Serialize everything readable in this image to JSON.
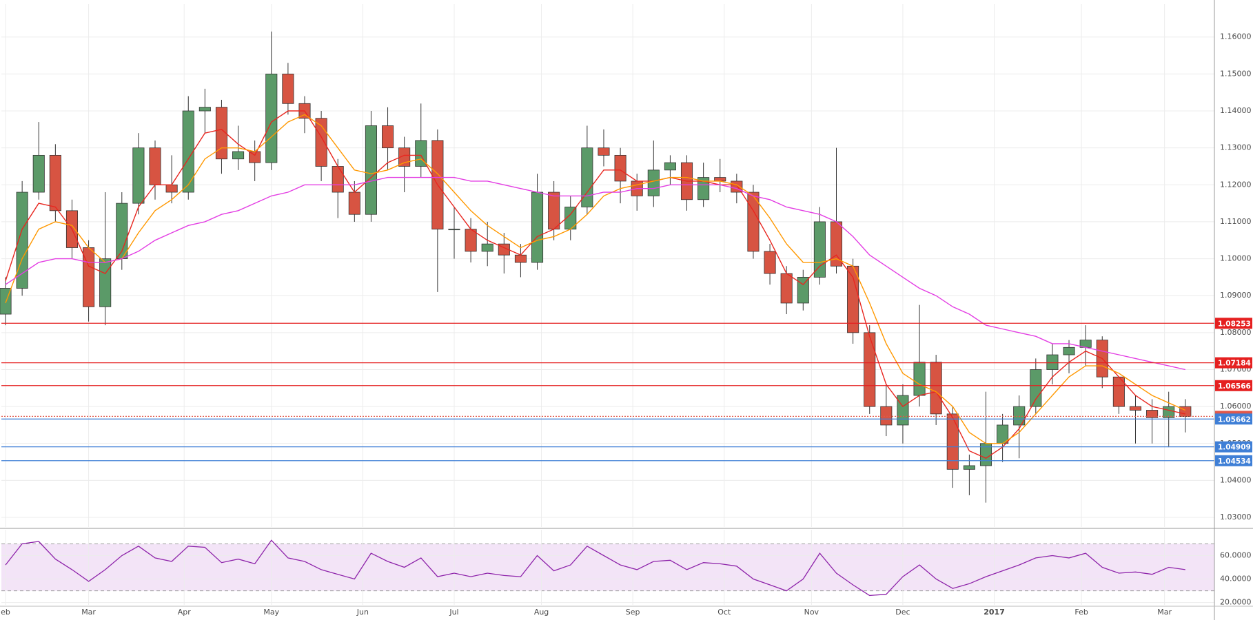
{
  "chart_data": [
    {
      "type": "candlestick",
      "x": [
        1,
        5,
        9,
        13,
        17,
        21,
        25,
        29,
        33,
        37,
        41,
        45,
        49,
        53,
        57,
        61,
        65,
        69,
        73,
        77,
        81,
        85,
        89,
        93,
        97,
        101,
        105,
        109,
        113,
        117,
        121,
        125,
        129,
        133,
        137,
        141,
        145,
        149,
        153,
        157,
        161,
        165,
        169,
        173,
        177,
        181,
        185,
        189,
        193,
        197,
        201,
        205,
        209,
        213,
        217,
        221,
        225,
        229,
        233,
        237,
        241,
        245,
        249,
        253,
        257,
        261,
        265,
        269,
        273,
        277,
        281,
        285
      ],
      "open": [
        1.085,
        1.092,
        1.118,
        1.128,
        1.113,
        1.103,
        1.087,
        1.1,
        1.115,
        1.13,
        1.12,
        1.118,
        1.14,
        1.141,
        1.127,
        1.129,
        1.126,
        1.15,
        1.142,
        1.138,
        1.125,
        1.118,
        1.112,
        1.136,
        1.13,
        1.125,
        1.132,
        1.108,
        1.108,
        1.102,
        1.104,
        1.101,
        1.099,
        1.118,
        1.108,
        1.114,
        1.13,
        1.128,
        1.121,
        1.117,
        1.124,
        1.126,
        1.116,
        1.122,
        1.121,
        1.118,
        1.102,
        1.096,
        1.088,
        1.095,
        1.11,
        1.098,
        1.08,
        1.06,
        1.055,
        1.063,
        1.072,
        1.058,
        1.043,
        1.044,
        1.05,
        1.055,
        1.06,
        1.07,
        1.074,
        1.076,
        1.078,
        1.068,
        1.06,
        1.059,
        1.057,
        1.06
      ],
      "high": [
        1.095,
        1.121,
        1.137,
        1.131,
        1.116,
        1.105,
        1.118,
        1.118,
        1.134,
        1.132,
        1.128,
        1.144,
        1.146,
        1.143,
        1.136,
        1.132,
        1.1615,
        1.153,
        1.144,
        1.14,
        1.127,
        1.121,
        1.14,
        1.141,
        1.133,
        1.142,
        1.135,
        1.114,
        1.111,
        1.11,
        1.107,
        1.104,
        1.123,
        1.121,
        1.117,
        1.136,
        1.135,
        1.13,
        1.123,
        1.132,
        1.128,
        1.128,
        1.126,
        1.127,
        1.123,
        1.12,
        1.104,
        1.098,
        1.097,
        1.114,
        1.13,
        1.1,
        1.082,
        1.066,
        1.066,
        1.0875,
        1.074,
        1.06,
        1.047,
        1.064,
        1.058,
        1.063,
        1.073,
        1.077,
        1.078,
        1.082,
        1.079,
        1.068,
        1.063,
        1.062,
        1.064,
        1.062
      ],
      "low": [
        1.082,
        1.09,
        1.116,
        1.11,
        1.1,
        1.083,
        1.082,
        1.097,
        1.112,
        1.116,
        1.115,
        1.116,
        1.134,
        1.123,
        1.124,
        1.121,
        1.124,
        1.139,
        1.134,
        1.121,
        1.111,
        1.11,
        1.11,
        1.124,
        1.118,
        1.122,
        1.091,
        1.1,
        1.099,
        1.098,
        1.096,
        1.095,
        1.097,
        1.105,
        1.105,
        1.112,
        1.125,
        1.115,
        1.113,
        1.114,
        1.12,
        1.113,
        1.114,
        1.118,
        1.115,
        1.1,
        1.093,
        1.085,
        1.086,
        1.093,
        1.096,
        1.077,
        1.058,
        1.052,
        1.05,
        1.06,
        1.055,
        1.038,
        1.036,
        1.034,
        1.045,
        1.046,
        1.058,
        1.066,
        1.069,
        1.071,
        1.065,
        1.058,
        1.05,
        1.05,
        1.049,
        1.053
      ],
      "close": [
        1.092,
        1.118,
        1.128,
        1.113,
        1.103,
        1.087,
        1.1,
        1.115,
        1.13,
        1.12,
        1.118,
        1.14,
        1.141,
        1.127,
        1.129,
        1.126,
        1.15,
        1.142,
        1.138,
        1.125,
        1.118,
        1.112,
        1.136,
        1.13,
        1.125,
        1.132,
        1.108,
        1.108,
        1.102,
        1.104,
        1.101,
        1.099,
        1.118,
        1.108,
        1.114,
        1.13,
        1.128,
        1.121,
        1.117,
        1.124,
        1.126,
        1.116,
        1.122,
        1.121,
        1.118,
        1.102,
        1.096,
        1.088,
        1.095,
        1.11,
        1.098,
        1.08,
        1.06,
        1.055,
        1.063,
        1.072,
        1.058,
        1.043,
        1.044,
        1.05,
        1.055,
        1.06,
        1.07,
        1.074,
        1.076,
        1.078,
        1.068,
        1.06,
        1.059,
        1.057,
        1.06,
        1.0573
      ],
      "up_color": "#5b9a68",
      "down_color": "#d75442",
      "wick_color": "#333333",
      "series": [
        {
          "color": "#e8261f",
          "values": [
            1.094,
            1.108,
            1.115,
            1.114,
            1.108,
            1.098,
            1.096,
            1.102,
            1.114,
            1.12,
            1.12,
            1.127,
            1.134,
            1.135,
            1.131,
            1.128,
            1.137,
            1.14,
            1.14,
            1.133,
            1.125,
            1.118,
            1.122,
            1.126,
            1.128,
            1.128,
            1.12,
            1.114,
            1.108,
            1.105,
            1.103,
            1.101,
            1.106,
            1.108,
            1.112,
            1.118,
            1.124,
            1.124,
            1.121,
            1.121,
            1.122,
            1.121,
            1.121,
            1.12,
            1.12,
            1.113,
            1.105,
            1.096,
            1.093,
            1.098,
            1.101,
            1.095,
            1.079,
            1.066,
            1.06,
            1.063,
            1.064,
            1.057,
            1.048,
            1.046,
            1.049,
            1.054,
            1.062,
            1.068,
            1.072,
            1.075,
            1.073,
            1.068,
            1.063,
            1.06,
            1.059,
            1.058
          ]
        },
        {
          "color": "#ff9800",
          "values": [
            1.088,
            1.1,
            1.108,
            1.11,
            1.109,
            1.103,
            1.099,
            1.1,
            1.107,
            1.113,
            1.116,
            1.12,
            1.127,
            1.13,
            1.13,
            1.129,
            1.133,
            1.137,
            1.139,
            1.136,
            1.13,
            1.124,
            1.123,
            1.124,
            1.126,
            1.127,
            1.123,
            1.118,
            1.113,
            1.109,
            1.106,
            1.103,
            1.105,
            1.106,
            1.108,
            1.112,
            1.117,
            1.119,
            1.12,
            1.121,
            1.122,
            1.122,
            1.121,
            1.121,
            1.12,
            1.117,
            1.111,
            1.104,
            1.099,
            1.099,
            1.1,
            1.098,
            1.088,
            1.077,
            1.069,
            1.066,
            1.064,
            1.06,
            1.053,
            1.05,
            1.05,
            1.053,
            1.058,
            1.063,
            1.068,
            1.071,
            1.071,
            1.069,
            1.066,
            1.063,
            1.061,
            1.059
          ]
        },
        {
          "color": "#e33ee3",
          "values": [
            1.093,
            1.096,
            1.099,
            1.1,
            1.1,
            1.099,
            1.099,
            1.1,
            1.102,
            1.105,
            1.107,
            1.109,
            1.11,
            1.112,
            1.113,
            1.115,
            1.117,
            1.118,
            1.12,
            1.12,
            1.12,
            1.12,
            1.121,
            1.122,
            1.122,
            1.122,
            1.122,
            1.122,
            1.121,
            1.121,
            1.12,
            1.119,
            1.118,
            1.117,
            1.117,
            1.117,
            1.118,
            1.118,
            1.119,
            1.119,
            1.12,
            1.12,
            1.12,
            1.12,
            1.119,
            1.117,
            1.116,
            1.114,
            1.113,
            1.112,
            1.11,
            1.106,
            1.101,
            1.098,
            1.095,
            1.092,
            1.09,
            1.087,
            1.085,
            1.082,
            1.081,
            1.08,
            1.079,
            1.077,
            1.077,
            1.076,
            1.075,
            1.074,
            1.073,
            1.072,
            1.071,
            1.07
          ]
        }
      ],
      "xlim": [
        0,
        292
      ],
      "ylim": [
        1.0274,
        1.1689
      ],
      "xticks": [
        {
          "value": 1,
          "label": "eb"
        },
        {
          "value": 21,
          "label": "Mar"
        },
        {
          "value": 44,
          "label": "Apr"
        },
        {
          "value": 65,
          "label": "May"
        },
        {
          "value": 87,
          "label": "Jun"
        },
        {
          "value": 109,
          "label": "Jul"
        },
        {
          "value": 130,
          "label": "Aug"
        },
        {
          "value": 152,
          "label": "Sep"
        },
        {
          "value": 174,
          "label": "Oct"
        },
        {
          "value": 195,
          "label": "Nov"
        },
        {
          "value": 217,
          "label": "Dec"
        },
        {
          "value": 239,
          "label": "2017"
        },
        {
          "value": 260,
          "label": "Feb"
        },
        {
          "value": 280,
          "label": "Mar"
        }
      ],
      "yticks": [
        {
          "value": 1.03,
          "label": "1.03000"
        },
        {
          "value": 1.04,
          "label": "1.04000"
        },
        {
          "value": 1.05,
          "label": "1.05000"
        },
        {
          "value": 1.06,
          "label": "1.06000"
        },
        {
          "value": 1.07,
          "label": "1.07000"
        },
        {
          "value": 1.08,
          "label": "1.08000"
        },
        {
          "value": 1.09,
          "label": "1.09000"
        },
        {
          "value": 1.1,
          "label": "1.10000"
        },
        {
          "value": 1.11,
          "label": "1.11000"
        },
        {
          "value": 1.12,
          "label": "1.12000"
        },
        {
          "value": 1.13,
          "label": "1.13000"
        },
        {
          "value": 1.14,
          "label": "1.14000"
        },
        {
          "value": 1.15,
          "label": "1.15000"
        },
        {
          "value": 1.16,
          "label": "1.16000"
        }
      ],
      "levels": [
        {
          "value": 1.08253,
          "color": "#e52020",
          "style": "solid"
        },
        {
          "value": 1.07184,
          "color": "#e52020",
          "style": "solid"
        },
        {
          "value": 1.06566,
          "color": "#e52020",
          "style": "solid"
        },
        {
          "value": 1.05735,
          "color": "#e0584a",
          "style": "dotted"
        },
        {
          "value": 1.05662,
          "color": "#3f7fd6",
          "style": "solid"
        },
        {
          "value": 1.04909,
          "color": "#3f7fd6",
          "style": "solid"
        },
        {
          "value": 1.04534,
          "color": "#3f7fd6",
          "style": "solid"
        }
      ],
      "grid": true
    },
    {
      "type": "line",
      "x": [
        1,
        5,
        9,
        13,
        17,
        21,
        25,
        29,
        33,
        37,
        41,
        45,
        49,
        53,
        57,
        61,
        65,
        69,
        73,
        77,
        81,
        85,
        89,
        93,
        97,
        101,
        105,
        109,
        113,
        117,
        121,
        125,
        129,
        133,
        137,
        141,
        145,
        149,
        153,
        157,
        161,
        165,
        169,
        173,
        177,
        181,
        185,
        189,
        193,
        197,
        201,
        205,
        209,
        213,
        217,
        221,
        225,
        229,
        233,
        237,
        241,
        245,
        249,
        253,
        257,
        261,
        265,
        269,
        273,
        277,
        281,
        285
      ],
      "series": [
        {
          "color": "#8e24aa",
          "values": [
            52,
            70,
            72,
            57,
            48,
            38,
            48,
            60,
            68,
            58,
            55,
            68,
            67,
            54,
            57,
            53,
            73,
            58,
            55,
            48,
            44,
            40,
            62,
            55,
            50,
            58,
            42,
            45,
            42,
            45,
            43,
            42,
            60,
            47,
            52,
            68,
            60,
            52,
            48,
            55,
            56,
            48,
            54,
            53,
            51,
            40,
            35,
            30,
            40,
            62,
            45,
            35,
            26,
            27,
            42,
            52,
            40,
            32,
            36,
            42,
            47,
            52,
            58,
            60,
            58,
            62,
            50,
            45,
            46,
            44,
            50,
            48
          ]
        }
      ],
      "xlim": [
        0,
        292
      ],
      "ylim": [
        18,
        82
      ],
      "yticks": [
        {
          "value": 20,
          "label": "20.0000"
        },
        {
          "value": 40,
          "label": "40.0000"
        },
        {
          "value": 60,
          "label": "60.0000"
        }
      ],
      "bands": [
        30,
        70
      ],
      "band_color": "#f3e4f7",
      "grid": true
    }
  ]
}
